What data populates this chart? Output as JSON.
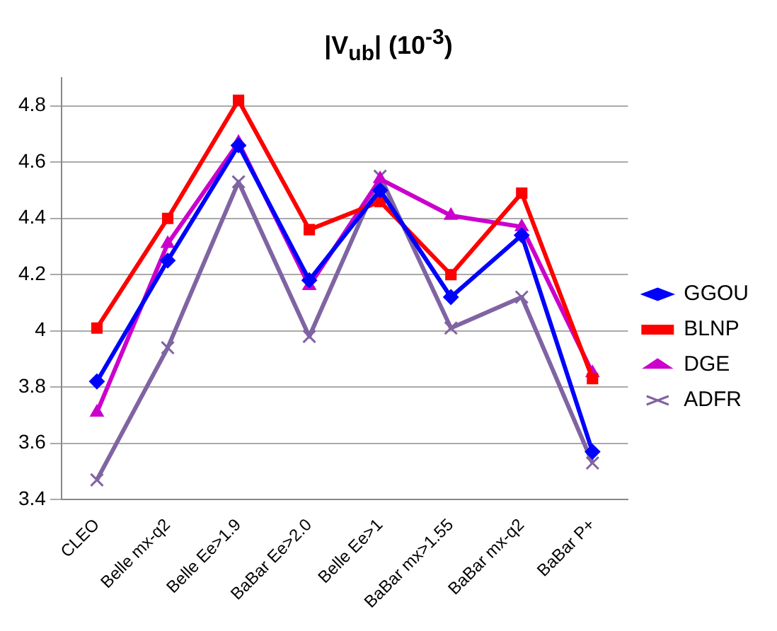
{
  "chart_data": {
    "type": "line",
    "title": "|V$_{ub}$| (10$^{-3}$)",
    "categories": [
      "CLEO",
      "Belle mx-q2",
      "Belle Ee>1.9",
      "BaBar Ee>2.0",
      "Belle Ee>1",
      "BaBar mx>1.55",
      "BaBar mx-q2",
      "BaBar P+"
    ],
    "series": [
      {
        "name": "GGOU",
        "color": "#0000ff",
        "marker": "diamond",
        "values": [
          3.82,
          4.25,
          4.66,
          4.18,
          4.5,
          4.12,
          4.34,
          3.57
        ]
      },
      {
        "name": "BLNP",
        "color": "#ff0000",
        "marker": "square",
        "values": [
          4.01,
          4.4,
          4.82,
          4.36,
          4.46,
          4.2,
          4.49,
          3.83
        ]
      },
      {
        "name": "DGE",
        "color": "#cc00cc",
        "marker": "triangle",
        "values": [
          3.71,
          4.31,
          4.67,
          4.16,
          4.54,
          4.41,
          4.37,
          3.85
        ]
      },
      {
        "name": "ADFR",
        "color": "#8064a2",
        "marker": "cross",
        "values": [
          3.47,
          3.94,
          4.53,
          3.98,
          4.55,
          4.01,
          4.12,
          3.53
        ]
      }
    ],
    "ylim": [
      3.4,
      4.9
    ],
    "yticks": [
      3.4,
      3.6,
      3.8,
      4,
      4.2,
      4.4,
      4.6,
      4.8
    ],
    "grid": "y",
    "legend": "right",
    "line_style": "solid"
  }
}
